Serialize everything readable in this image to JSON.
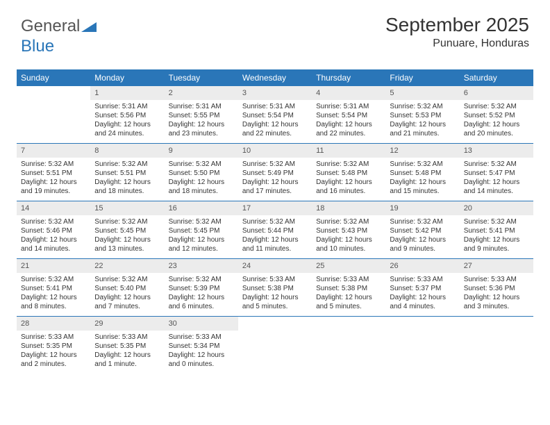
{
  "brand": {
    "part1": "General",
    "part2": "Blue"
  },
  "title": "September 2025",
  "location": "Punuare, Honduras",
  "colors": {
    "header_bg": "#2a76b8",
    "daynum_bg": "#ececec",
    "rule": "#2a76b8",
    "text": "#333333"
  },
  "day_headers": [
    "Sunday",
    "Monday",
    "Tuesday",
    "Wednesday",
    "Thursday",
    "Friday",
    "Saturday"
  ],
  "weeks": [
    [
      {
        "empty": true
      },
      {
        "n": "1",
        "sr": "Sunrise: 5:31 AM",
        "ss": "Sunset: 5:56 PM",
        "d1": "Daylight: 12 hours",
        "d2": "and 24 minutes."
      },
      {
        "n": "2",
        "sr": "Sunrise: 5:31 AM",
        "ss": "Sunset: 5:55 PM",
        "d1": "Daylight: 12 hours",
        "d2": "and 23 minutes."
      },
      {
        "n": "3",
        "sr": "Sunrise: 5:31 AM",
        "ss": "Sunset: 5:54 PM",
        "d1": "Daylight: 12 hours",
        "d2": "and 22 minutes."
      },
      {
        "n": "4",
        "sr": "Sunrise: 5:31 AM",
        "ss": "Sunset: 5:54 PM",
        "d1": "Daylight: 12 hours",
        "d2": "and 22 minutes."
      },
      {
        "n": "5",
        "sr": "Sunrise: 5:32 AM",
        "ss": "Sunset: 5:53 PM",
        "d1": "Daylight: 12 hours",
        "d2": "and 21 minutes."
      },
      {
        "n": "6",
        "sr": "Sunrise: 5:32 AM",
        "ss": "Sunset: 5:52 PM",
        "d1": "Daylight: 12 hours",
        "d2": "and 20 minutes."
      }
    ],
    [
      {
        "n": "7",
        "sr": "Sunrise: 5:32 AM",
        "ss": "Sunset: 5:51 PM",
        "d1": "Daylight: 12 hours",
        "d2": "and 19 minutes."
      },
      {
        "n": "8",
        "sr": "Sunrise: 5:32 AM",
        "ss": "Sunset: 5:51 PM",
        "d1": "Daylight: 12 hours",
        "d2": "and 18 minutes."
      },
      {
        "n": "9",
        "sr": "Sunrise: 5:32 AM",
        "ss": "Sunset: 5:50 PM",
        "d1": "Daylight: 12 hours",
        "d2": "and 18 minutes."
      },
      {
        "n": "10",
        "sr": "Sunrise: 5:32 AM",
        "ss": "Sunset: 5:49 PM",
        "d1": "Daylight: 12 hours",
        "d2": "and 17 minutes."
      },
      {
        "n": "11",
        "sr": "Sunrise: 5:32 AM",
        "ss": "Sunset: 5:48 PM",
        "d1": "Daylight: 12 hours",
        "d2": "and 16 minutes."
      },
      {
        "n": "12",
        "sr": "Sunrise: 5:32 AM",
        "ss": "Sunset: 5:48 PM",
        "d1": "Daylight: 12 hours",
        "d2": "and 15 minutes."
      },
      {
        "n": "13",
        "sr": "Sunrise: 5:32 AM",
        "ss": "Sunset: 5:47 PM",
        "d1": "Daylight: 12 hours",
        "d2": "and 14 minutes."
      }
    ],
    [
      {
        "n": "14",
        "sr": "Sunrise: 5:32 AM",
        "ss": "Sunset: 5:46 PM",
        "d1": "Daylight: 12 hours",
        "d2": "and 14 minutes."
      },
      {
        "n": "15",
        "sr": "Sunrise: 5:32 AM",
        "ss": "Sunset: 5:45 PM",
        "d1": "Daylight: 12 hours",
        "d2": "and 13 minutes."
      },
      {
        "n": "16",
        "sr": "Sunrise: 5:32 AM",
        "ss": "Sunset: 5:45 PM",
        "d1": "Daylight: 12 hours",
        "d2": "and 12 minutes."
      },
      {
        "n": "17",
        "sr": "Sunrise: 5:32 AM",
        "ss": "Sunset: 5:44 PM",
        "d1": "Daylight: 12 hours",
        "d2": "and 11 minutes."
      },
      {
        "n": "18",
        "sr": "Sunrise: 5:32 AM",
        "ss": "Sunset: 5:43 PM",
        "d1": "Daylight: 12 hours",
        "d2": "and 10 minutes."
      },
      {
        "n": "19",
        "sr": "Sunrise: 5:32 AM",
        "ss": "Sunset: 5:42 PM",
        "d1": "Daylight: 12 hours",
        "d2": "and 9 minutes."
      },
      {
        "n": "20",
        "sr": "Sunrise: 5:32 AM",
        "ss": "Sunset: 5:41 PM",
        "d1": "Daylight: 12 hours",
        "d2": "and 9 minutes."
      }
    ],
    [
      {
        "n": "21",
        "sr": "Sunrise: 5:32 AM",
        "ss": "Sunset: 5:41 PM",
        "d1": "Daylight: 12 hours",
        "d2": "and 8 minutes."
      },
      {
        "n": "22",
        "sr": "Sunrise: 5:32 AM",
        "ss": "Sunset: 5:40 PM",
        "d1": "Daylight: 12 hours",
        "d2": "and 7 minutes."
      },
      {
        "n": "23",
        "sr": "Sunrise: 5:32 AM",
        "ss": "Sunset: 5:39 PM",
        "d1": "Daylight: 12 hours",
        "d2": "and 6 minutes."
      },
      {
        "n": "24",
        "sr": "Sunrise: 5:33 AM",
        "ss": "Sunset: 5:38 PM",
        "d1": "Daylight: 12 hours",
        "d2": "and 5 minutes."
      },
      {
        "n": "25",
        "sr": "Sunrise: 5:33 AM",
        "ss": "Sunset: 5:38 PM",
        "d1": "Daylight: 12 hours",
        "d2": "and 5 minutes."
      },
      {
        "n": "26",
        "sr": "Sunrise: 5:33 AM",
        "ss": "Sunset: 5:37 PM",
        "d1": "Daylight: 12 hours",
        "d2": "and 4 minutes."
      },
      {
        "n": "27",
        "sr": "Sunrise: 5:33 AM",
        "ss": "Sunset: 5:36 PM",
        "d1": "Daylight: 12 hours",
        "d2": "and 3 minutes."
      }
    ],
    [
      {
        "n": "28",
        "sr": "Sunrise: 5:33 AM",
        "ss": "Sunset: 5:35 PM",
        "d1": "Daylight: 12 hours",
        "d2": "and 2 minutes."
      },
      {
        "n": "29",
        "sr": "Sunrise: 5:33 AM",
        "ss": "Sunset: 5:35 PM",
        "d1": "Daylight: 12 hours",
        "d2": "and 1 minute."
      },
      {
        "n": "30",
        "sr": "Sunrise: 5:33 AM",
        "ss": "Sunset: 5:34 PM",
        "d1": "Daylight: 12 hours",
        "d2": "and 0 minutes."
      },
      {
        "empty": true
      },
      {
        "empty": true
      },
      {
        "empty": true
      },
      {
        "empty": true
      }
    ]
  ]
}
